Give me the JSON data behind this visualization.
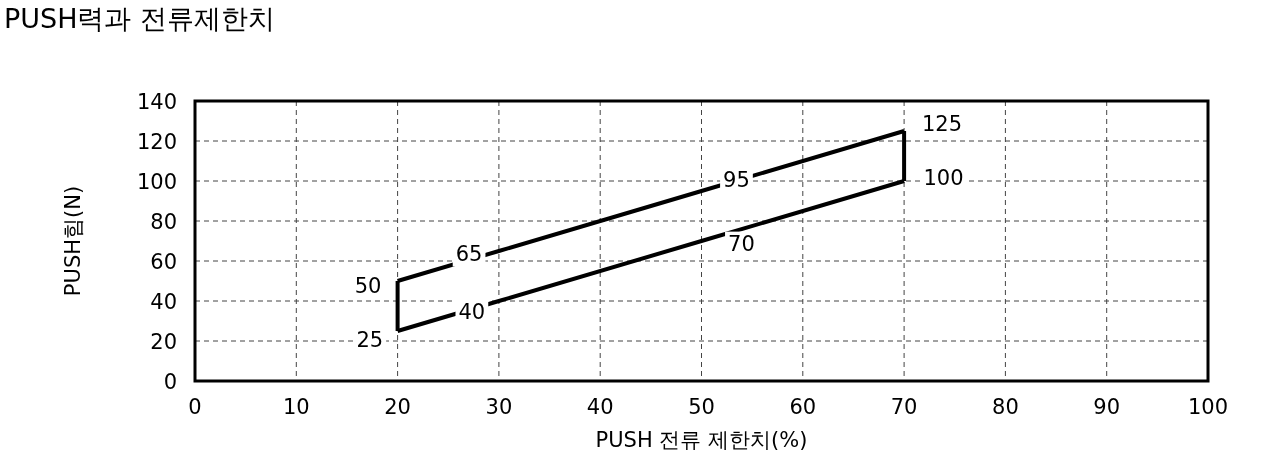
{
  "chart_data": {
    "type": "line",
    "title": "PUSH력과 전류제한치",
    "xlabel": "PUSH 전류 제한치(%)",
    "ylabel": "PUSH힘(N)",
    "xlim": [
      0,
      100
    ],
    "xticks": [
      0,
      10,
      20,
      30,
      40,
      50,
      60,
      70,
      80,
      90,
      100
    ],
    "ylim": [
      0,
      140
    ],
    "yticks": [
      0,
      20,
      40,
      60,
      80,
      100,
      120,
      140
    ],
    "grid": true,
    "marker": "none",
    "line_style": "solid",
    "series": [
      {
        "color": "#000000",
        "x": [
          20,
          30,
          50,
          70
        ],
        "values": [
          25,
          40,
          70,
          100
        ],
        "value_labels": [
          "25",
          "40",
          "70",
          "100"
        ]
      },
      {
        "color": "#000000",
        "x": [
          20,
          30,
          50,
          70
        ],
        "values": [
          50,
          65,
          95,
          125
        ],
        "value_labels": [
          "50",
          "65",
          "95",
          "125"
        ]
      },
      {
        "color": "#000000",
        "x": [
          20,
          20
        ],
        "values": [
          25,
          50
        ],
        "value_labels": [
          null,
          null
        ]
      },
      {
        "color": "#000000",
        "x": [
          70,
          70
        ],
        "values": [
          100,
          125
        ],
        "value_labels": [
          null,
          null
        ]
      }
    ]
  }
}
